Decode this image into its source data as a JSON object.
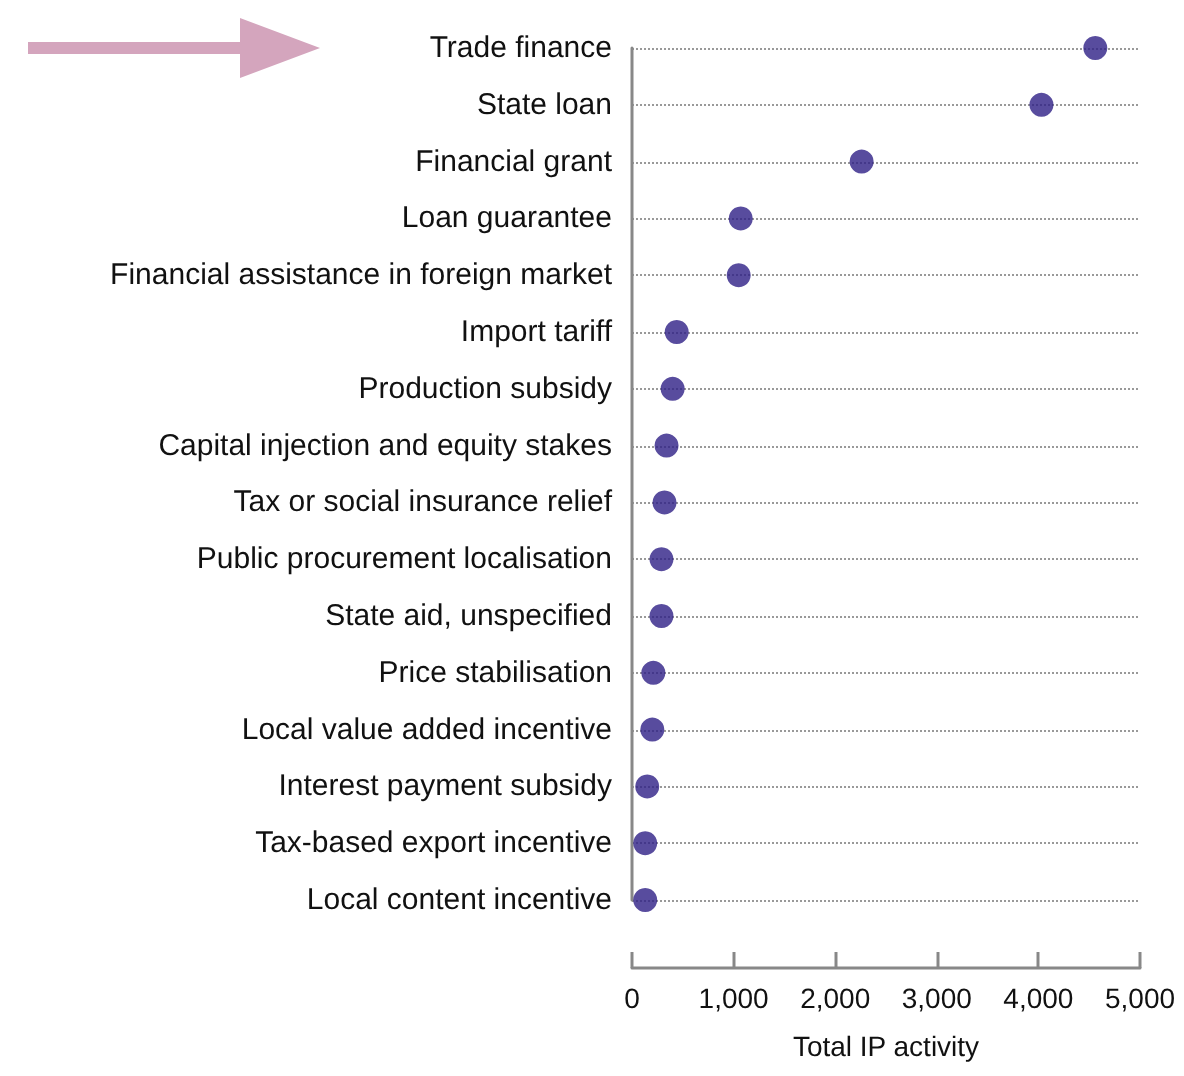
{
  "chart_data": {
    "type": "scatter",
    "orientation": "horizontal",
    "xlabel": "Total IP activity",
    "categories": [
      "Trade finance",
      "State loan",
      "Financial grant",
      "Loan guarantee",
      "Financial assistance in foreign market",
      "Import tariff",
      "Production subsidy",
      "Capital injection and equity stakes",
      "Tax or social insurance relief",
      "Public procurement localisation",
      "State aid, unspecified",
      "Price stabilisation",
      "Local value added incentive",
      "Interest payment subsidy",
      "Tax-based export incentive",
      "Local content incentive"
    ],
    "values": [
      4560,
      4030,
      2260,
      1070,
      1050,
      440,
      400,
      340,
      320,
      290,
      290,
      210,
      200,
      150,
      130,
      130
    ],
    "color": "#2e1f86",
    "marker": "circle",
    "xlim": [
      0,
      5000
    ],
    "xticks": [
      0,
      {
        "value": 1000,
        "label": "1,000"
      },
      {
        "value": 2000,
        "label": "2,000"
      },
      {
        "value": 3000,
        "label": "3,000"
      },
      {
        "value": 4000,
        "label": "4,000"
      },
      {
        "value": 5000,
        "label": "5,000"
      }
    ],
    "grid": "y"
  }
}
